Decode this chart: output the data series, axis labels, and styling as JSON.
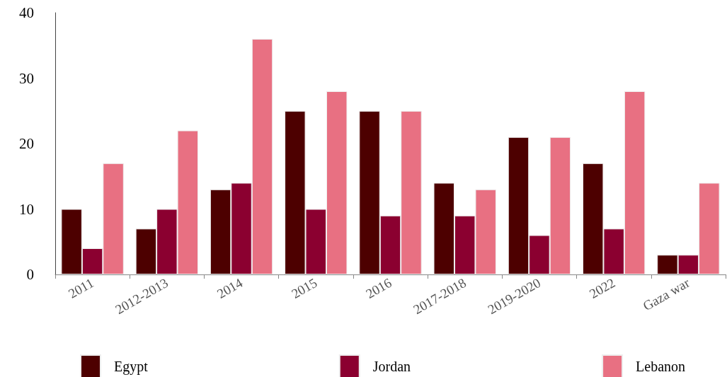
{
  "chart_data": {
    "type": "bar",
    "categories": [
      "2011",
      "2012-2013",
      "2014",
      "2015",
      "2016",
      "2017-2018",
      "2019-2020",
      "2022",
      "Gaza war"
    ],
    "series": [
      {
        "name": "Egypt",
        "color": "#4d0000",
        "values": [
          10,
          7,
          13,
          25,
          25,
          14,
          21,
          17,
          3
        ]
      },
      {
        "name": "Jordan",
        "color": "#8b0030",
        "values": [
          4,
          10,
          14,
          10,
          9,
          9,
          6,
          7,
          3
        ]
      },
      {
        "name": "Lebanon",
        "color": "#e87082",
        "values": [
          17,
          22,
          36,
          28,
          25,
          13,
          21,
          28,
          14
        ]
      }
    ],
    "ylim": [
      0,
      40
    ],
    "yticks": [
      0,
      10,
      20,
      30,
      40
    ],
    "grid": false,
    "legend": "bottom"
  }
}
